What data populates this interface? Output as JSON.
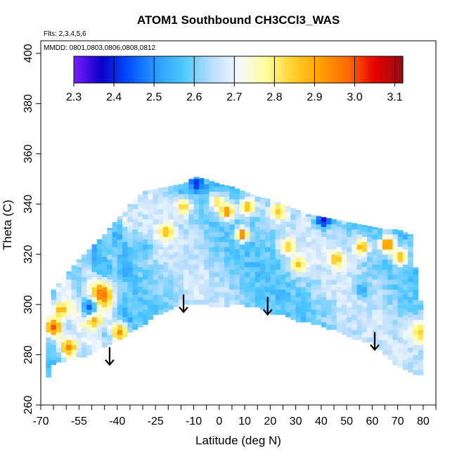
{
  "chart_data": {
    "type": "heatmap",
    "title": "ATOM1 Southbound CH3CCl3_WAS",
    "subtitle_flights": "Flts: 2,3,4,5,6",
    "subtitle_dates": "MMDD: 0801,0803,0806,0808,0812",
    "xlabel": "Latitude (deg N)",
    "ylabel": "Theta (C)",
    "xlim": [
      -70,
      85
    ],
    "ylim": [
      260,
      405
    ],
    "x_ticks": [
      -70,
      -65,
      -60,
      -55,
      -50,
      -45,
      -40,
      -35,
      -30,
      -25,
      -20,
      -15,
      -10,
      -5,
      0,
      5,
      10,
      15,
      20,
      25,
      30,
      35,
      40,
      45,
      50,
      55,
      60,
      65,
      70,
      75,
      80,
      85
    ],
    "x_tick_labels": [
      "-70",
      "-55",
      "-40",
      "-25",
      "-10",
      "0",
      "10",
      "20",
      "30",
      "40",
      "50",
      "60",
      "70",
      "80"
    ],
    "x_tick_label_values": [
      -70,
      -55,
      -40,
      -25,
      -10,
      0,
      10,
      20,
      30,
      40,
      50,
      60,
      70,
      80
    ],
    "y_ticks": [
      260,
      280,
      300,
      320,
      340,
      360,
      380,
      400
    ],
    "y_tick_labels": [
      "260",
      "280",
      "300",
      "320",
      "340",
      "360",
      "380",
      "400"
    ],
    "colorbar": {
      "min": 2.3,
      "max": 3.12,
      "ticks": [
        2.3,
        2.4,
        2.5,
        2.6,
        2.7,
        2.8,
        2.9,
        3.0,
        3.1
      ],
      "tick_labels": [
        "2.3",
        "2.4",
        "2.5",
        "2.6",
        "2.7",
        "2.8",
        "2.9",
        "3.0",
        "3.1"
      ],
      "colors": [
        "#7a1fff",
        "#0a00c8",
        "#0050ff",
        "#2a9bff",
        "#4fc8ff",
        "#b8ddff",
        "#f4f8ff",
        "#ffff9a",
        "#ffd02a",
        "#ffa000",
        "#ff6a00",
        "#e60000",
        "#8f1010"
      ]
    },
    "boundary_lat": [
      -68,
      -66,
      -60,
      -55,
      -50,
      -45,
      -40,
      -35,
      -30,
      -25,
      -20,
      -15,
      -12,
      -10,
      -5,
      0,
      5,
      10,
      15,
      20,
      25,
      30,
      35,
      40,
      45,
      50,
      55,
      60,
      65,
      70,
      75,
      80
    ],
    "boundary_top": [
      287,
      305,
      312,
      318,
      323,
      328,
      334,
      340,
      345,
      346,
      347,
      348,
      349,
      351,
      350,
      348,
      347,
      345,
      343,
      342,
      340,
      338,
      336,
      335,
      334,
      333,
      332,
      331,
      330,
      330,
      328,
      295
    ],
    "boundary_bottom": [
      266,
      276,
      278,
      279,
      281,
      283,
      286,
      289,
      292,
      296,
      298,
      300,
      300,
      300,
      300,
      299,
      300,
      300,
      299,
      297,
      296,
      294,
      293,
      292,
      290,
      288,
      286,
      285,
      280,
      276,
      273,
      272
    ],
    "anomalies": [
      {
        "lat": -47,
        "theta": 303,
        "value": 2.98,
        "r": 5
      },
      {
        "lat": -66,
        "theta": 290,
        "value": 3.0,
        "r": 3
      },
      {
        "lat": -60,
        "theta": 282,
        "value": 2.95,
        "r": 3
      },
      {
        "lat": -63,
        "theta": 297,
        "value": 2.9,
        "r": 3
      },
      {
        "lat": -50,
        "theta": 293,
        "value": 2.92,
        "r": 3
      },
      {
        "lat": -40,
        "theta": 288,
        "value": 2.93,
        "r": 3
      },
      {
        "lat": -52,
        "theta": 298,
        "value": 2.45,
        "r": 3
      },
      {
        "lat": -38,
        "theta": 312,
        "value": 2.52,
        "r": 3
      },
      {
        "lat": -30,
        "theta": 322,
        "value": 2.55,
        "r": 3
      },
      {
        "lat": -22,
        "theta": 328,
        "value": 2.88,
        "r": 3
      },
      {
        "lat": -15,
        "theta": 338,
        "value": 2.85,
        "r": 3
      },
      {
        "lat": -10,
        "theta": 347,
        "value": 2.4,
        "r": 2.5
      },
      {
        "lat": -2,
        "theta": 340,
        "value": 2.82,
        "r": 3
      },
      {
        "lat": 2,
        "theta": 336,
        "value": 2.95,
        "r": 3
      },
      {
        "lat": 8,
        "theta": 327,
        "value": 2.98,
        "r": 2.5
      },
      {
        "lat": 10,
        "theta": 338,
        "value": 2.88,
        "r": 3
      },
      {
        "lat": 22,
        "theta": 336,
        "value": 2.86,
        "r": 3
      },
      {
        "lat": 26,
        "theta": 322,
        "value": 2.85,
        "r": 3
      },
      {
        "lat": 30,
        "theta": 315,
        "value": 2.87,
        "r": 3
      },
      {
        "lat": 40,
        "theta": 333,
        "value": 2.35,
        "r": 3
      },
      {
        "lat": 45,
        "theta": 317,
        "value": 2.88,
        "r": 3
      },
      {
        "lat": 55,
        "theta": 322,
        "value": 2.9,
        "r": 3
      },
      {
        "lat": 65,
        "theta": 323,
        "value": 2.98,
        "r": 3
      },
      {
        "lat": 70,
        "theta": 318,
        "value": 2.88,
        "r": 3
      },
      {
        "lat": 78,
        "theta": 288,
        "value": 2.84,
        "r": 5
      },
      {
        "lat": 55,
        "theta": 305,
        "value": 2.52,
        "r": 3
      },
      {
        "lat": 10,
        "theta": 306,
        "value": 2.58,
        "r": 3
      },
      {
        "lat": -20,
        "theta": 308,
        "value": 2.6,
        "r": 3
      }
    ],
    "arrows": [
      {
        "lat": -43,
        "theta_top": 283,
        "theta_tip": 276
      },
      {
        "lat": -14,
        "theta_top": 304,
        "theta_tip": 297
      },
      {
        "lat": 19,
        "theta_top": 303,
        "theta_tip": 296
      },
      {
        "lat": 61,
        "theta_top": 289,
        "theta_tip": 282
      }
    ]
  }
}
